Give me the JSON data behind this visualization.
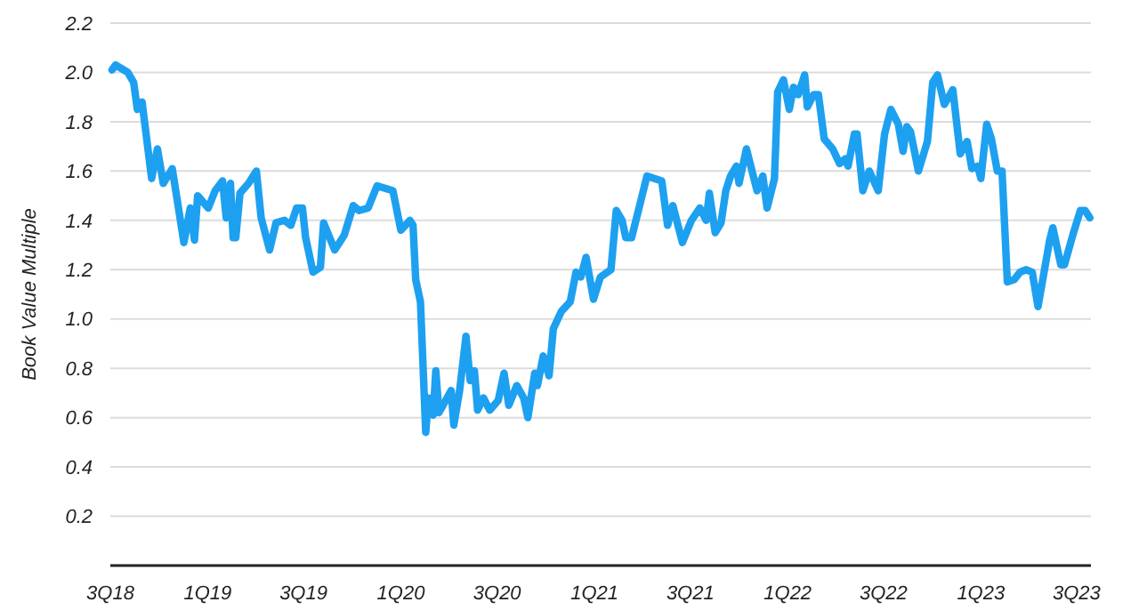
{
  "chart_data": {
    "type": "line",
    "ylabel": "Book Value Multiple",
    "xlim": [
      "2018-07-01",
      "2023-07-28"
    ],
    "xticks": [
      {
        "value": "2018-07-01",
        "label": "3Q18"
      },
      {
        "value": "2019-01-01",
        "label": "1Q19"
      },
      {
        "value": "2019-07-01",
        "label": "3Q19"
      },
      {
        "value": "2020-01-01",
        "label": "1Q20"
      },
      {
        "value": "2020-07-01",
        "label": "3Q20"
      },
      {
        "value": "2021-01-01",
        "label": "1Q21"
      },
      {
        "value": "2021-07-01",
        "label": "3Q21"
      },
      {
        "value": "2022-01-01",
        "label": "1Q22"
      },
      {
        "value": "2022-07-01",
        "label": "3Q22"
      },
      {
        "value": "2023-01-01",
        "label": "1Q23"
      },
      {
        "value": "2023-07-01",
        "label": "3Q23"
      }
    ],
    "ylim": [
      0,
      2.2
    ],
    "yticks": [
      0.2,
      0.4,
      0.6,
      0.8,
      {
        "value": 1,
        "label": "1.0"
      },
      1.2,
      1.4,
      1.6,
      1.8,
      {
        "value": 2,
        "label": "2.0"
      },
      2.2
    ],
    "grid": "y",
    "marker": "none",
    "line_style": "solid",
    "series": [
      {
        "color": "#1ea0f0",
        "x": [
          "2018-07-04",
          "2018-07-11",
          "2018-08-03",
          "2018-08-14",
          "2018-08-21",
          "2018-08-30",
          "2018-09-17",
          "2018-09-28",
          "2018-10-09",
          "2018-10-26",
          "2018-11-17",
          "2018-11-29",
          "2018-12-07",
          "2018-12-13",
          "2019-01-02",
          "2019-01-15",
          "2019-01-29",
          "2019-02-05",
          "2019-02-13",
          "2019-02-18",
          "2019-02-23",
          "2019-03-03",
          "2019-03-19",
          "2019-04-03",
          "2019-04-12",
          "2019-04-28",
          "2019-05-10",
          "2019-05-26",
          "2019-06-07",
          "2019-06-18",
          "2019-06-29",
          "2019-07-05",
          "2019-07-19",
          "2019-08-02",
          "2019-08-08",
          "2019-08-29",
          "2019-09-16",
          "2019-10-03",
          "2019-10-14",
          "2019-10-31",
          "2019-11-17",
          "2019-12-17",
          "2020-01-01",
          "2020-01-18",
          "2020-01-24",
          "2020-01-29",
          "2020-02-07",
          "2020-02-17",
          "2020-02-22",
          "2020-03-02",
          "2020-03-07",
          "2020-03-13",
          "2020-04-05",
          "2020-04-10",
          "2020-04-21",
          "2020-05-03",
          "2020-05-11",
          "2020-05-19",
          "2020-05-25",
          "2020-06-05",
          "2020-06-17",
          "2020-07-03",
          "2020-07-14",
          "2020-07-23",
          "2020-08-07",
          "2020-08-20",
          "2020-08-28",
          "2020-09-10",
          "2020-09-15",
          "2020-09-26",
          "2020-10-07",
          "2020-10-15",
          "2020-10-30",
          "2020-11-16",
          "2020-11-27",
          "2020-12-06",
          "2020-12-16",
          "2020-12-30",
          "2021-01-12",
          "2021-02-01",
          "2021-02-11",
          "2021-02-22",
          "2021-03-01",
          "2021-03-12",
          "2021-03-26",
          "2021-04-10",
          "2021-05-08",
          "2021-05-19",
          "2021-05-29",
          "2021-06-16",
          "2021-07-03",
          "2021-07-19",
          "2021-07-31",
          "2021-08-06",
          "2021-08-17",
          "2021-08-28",
          "2021-09-06",
          "2021-09-15",
          "2021-09-26",
          "2021-10-01",
          "2021-10-15",
          "2021-11-04",
          "2021-11-15",
          "2021-11-23",
          "2021-12-07",
          "2021-12-13",
          "2021-12-24",
          "2022-01-04",
          "2022-01-12",
          "2022-01-21",
          "2022-02-02",
          "2022-02-07",
          "2022-02-19",
          "2022-02-28",
          "2022-03-11",
          "2022-03-27",
          "2022-04-09",
          "2022-04-20",
          "2022-04-25",
          "2022-05-07",
          "2022-05-12",
          "2022-05-23",
          "2022-06-04",
          "2022-06-21",
          "2022-07-03",
          "2022-07-15",
          "2022-07-29",
          "2022-08-07",
          "2022-08-14",
          "2022-08-21",
          "2022-09-05",
          "2022-09-22",
          "2022-10-02",
          "2022-10-11",
          "2022-10-24",
          "2022-11-09",
          "2022-11-23",
          "2022-12-06",
          "2022-12-15",
          "2022-12-26",
          "2023-01-01",
          "2023-01-12",
          "2023-01-21",
          "2023-02-01",
          "2023-02-10",
          "2023-02-20",
          "2023-03-05",
          "2023-03-16",
          "2023-03-27",
          "2023-04-08",
          "2023-04-19",
          "2023-05-11",
          "2023-05-17",
          "2023-06-01",
          "2023-06-08",
          "2023-06-25",
          "2023-07-08",
          "2023-07-17",
          "2023-07-26"
        ],
        "values": [
          2.01,
          2.03,
          2,
          1.96,
          1.85,
          1.88,
          1.57,
          1.69,
          1.55,
          1.61,
          1.31,
          1.45,
          1.32,
          1.5,
          1.45,
          1.52,
          1.56,
          1.41,
          1.55,
          1.33,
          1.33,
          1.51,
          1.55,
          1.6,
          1.41,
          1.28,
          1.39,
          1.4,
          1.38,
          1.45,
          1.45,
          1.33,
          1.19,
          1.21,
          1.39,
          1.28,
          1.34,
          1.46,
          1.44,
          1.45,
          1.54,
          1.52,
          1.36,
          1.4,
          1.38,
          1.16,
          1.07,
          0.54,
          0.68,
          0.61,
          0.79,
          0.62,
          0.71,
          0.57,
          0.71,
          0.93,
          0.75,
          0.79,
          0.63,
          0.68,
          0.63,
          0.67,
          0.78,
          0.65,
          0.73,
          0.68,
          0.6,
          0.78,
          0.73,
          0.85,
          0.77,
          0.96,
          1.03,
          1.07,
          1.19,
          1.17,
          1.25,
          1.08,
          1.17,
          1.2,
          1.44,
          1.4,
          1.33,
          1.33,
          1.45,
          1.58,
          1.56,
          1.38,
          1.46,
          1.31,
          1.4,
          1.45,
          1.4,
          1.51,
          1.35,
          1.39,
          1.52,
          1.58,
          1.62,
          1.55,
          1.69,
          1.52,
          1.58,
          1.45,
          1.57,
          1.92,
          1.97,
          1.85,
          1.94,
          1.91,
          1.99,
          1.86,
          1.91,
          1.91,
          1.73,
          1.69,
          1.63,
          1.65,
          1.62,
          1.75,
          1.75,
          1.52,
          1.6,
          1.52,
          1.75,
          1.85,
          1.79,
          1.68,
          1.78,
          1.76,
          1.6,
          1.72,
          1.96,
          1.99,
          1.87,
          1.93,
          1.67,
          1.72,
          1.61,
          1.62,
          1.57,
          1.79,
          1.73,
          1.6,
          1.6,
          1.15,
          1.16,
          1.19,
          1.2,
          1.19,
          1.05,
          1.32,
          1.37,
          1.22,
          1.22,
          1.35,
          1.44,
          1.44,
          1.41
        ]
      }
    ]
  }
}
